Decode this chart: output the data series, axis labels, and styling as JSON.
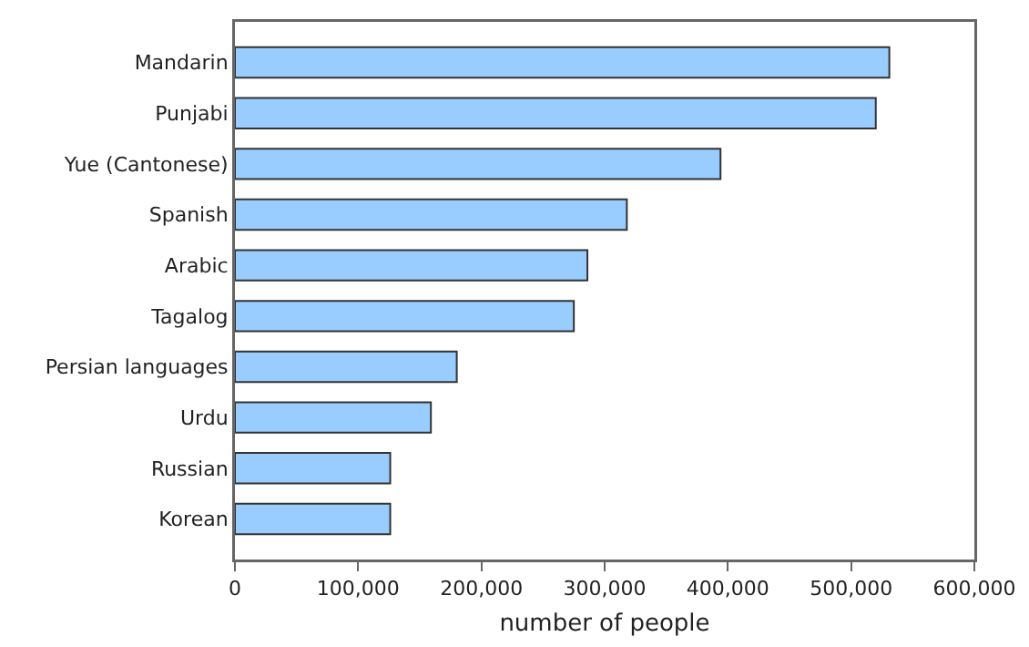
{
  "chart_data": {
    "type": "bar",
    "orientation": "horizontal",
    "xlabel": "number of people",
    "categories": [
      "Mandarin",
      "Punjabi",
      "Yue (Cantonese)",
      "Spanish",
      "Arabic",
      "Tagalog",
      "Persian languages",
      "Urdu",
      "Russian",
      "Korean"
    ],
    "values": [
      531000,
      520000,
      394000,
      318000,
      286000,
      275000,
      180000,
      159000,
      126000,
      126000
    ],
    "color": "#99ccff",
    "xlim": [
      0,
      600000
    ],
    "xticks": [
      {
        "value": 0,
        "label": "0"
      },
      {
        "value": 100000,
        "label": "100,000"
      },
      {
        "value": 200000,
        "label": "200,000"
      },
      {
        "value": 300000,
        "label": "300,000"
      },
      {
        "value": 400000,
        "label": "400,000"
      },
      {
        "value": 500000,
        "label": "500,000"
      },
      {
        "value": 600000,
        "label": "600,000"
      }
    ]
  }
}
